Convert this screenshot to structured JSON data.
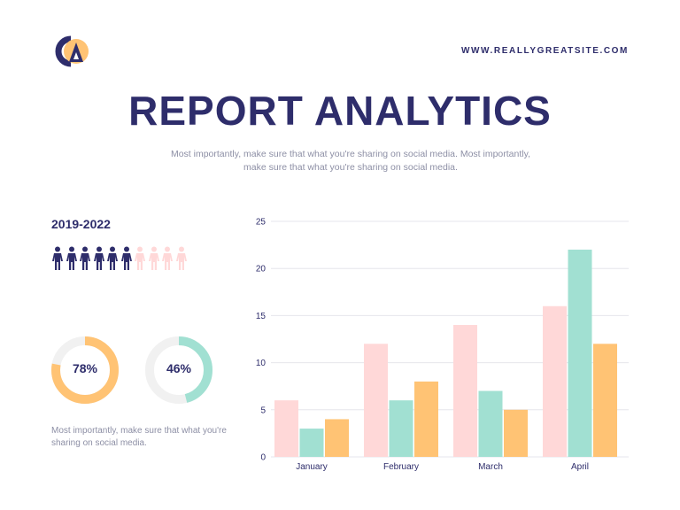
{
  "header": {
    "website": "WWW.REALLYGREATSITE.COM",
    "title": "REPORT ANALYTICS",
    "subtitle": "Most importantly, make sure that what you're sharing on social media. Most importantly, make sure that what you're sharing on social media."
  },
  "stats": {
    "years": "2019-2022",
    "people_total": 10,
    "people_highlighted": 6,
    "donuts": [
      {
        "label": "78%",
        "value": 78,
        "color": "#ffc374"
      },
      {
        "label": "46%",
        "value": 46,
        "color": "#a1e0d2"
      }
    ],
    "caption": "Most importantly, make sure that what you're sharing on social media."
  },
  "colors": {
    "navy": "#2e2d6b",
    "pink": "#ffd8d8",
    "mint": "#a1e0d2",
    "orange": "#ffc374",
    "track": "#f1f1f1",
    "grid": "#e6e6ec"
  },
  "icons": {
    "logo": "brand-logo-icon",
    "person": "person-icon"
  },
  "chart_data": {
    "type": "bar",
    "categories": [
      "January",
      "February",
      "March",
      "April"
    ],
    "series": [
      {
        "values": [
          6,
          12,
          14,
          16
        ],
        "color": "#ffd8d8"
      },
      {
        "values": [
          3,
          6,
          7,
          22
        ],
        "color": "#a1e0d2"
      },
      {
        "values": [
          4,
          8,
          5,
          12
        ],
        "color": "#ffc374"
      }
    ],
    "ylim": [
      0,
      25
    ],
    "yticks": [
      0,
      5,
      10,
      15,
      20,
      25
    ],
    "grid": true
  }
}
